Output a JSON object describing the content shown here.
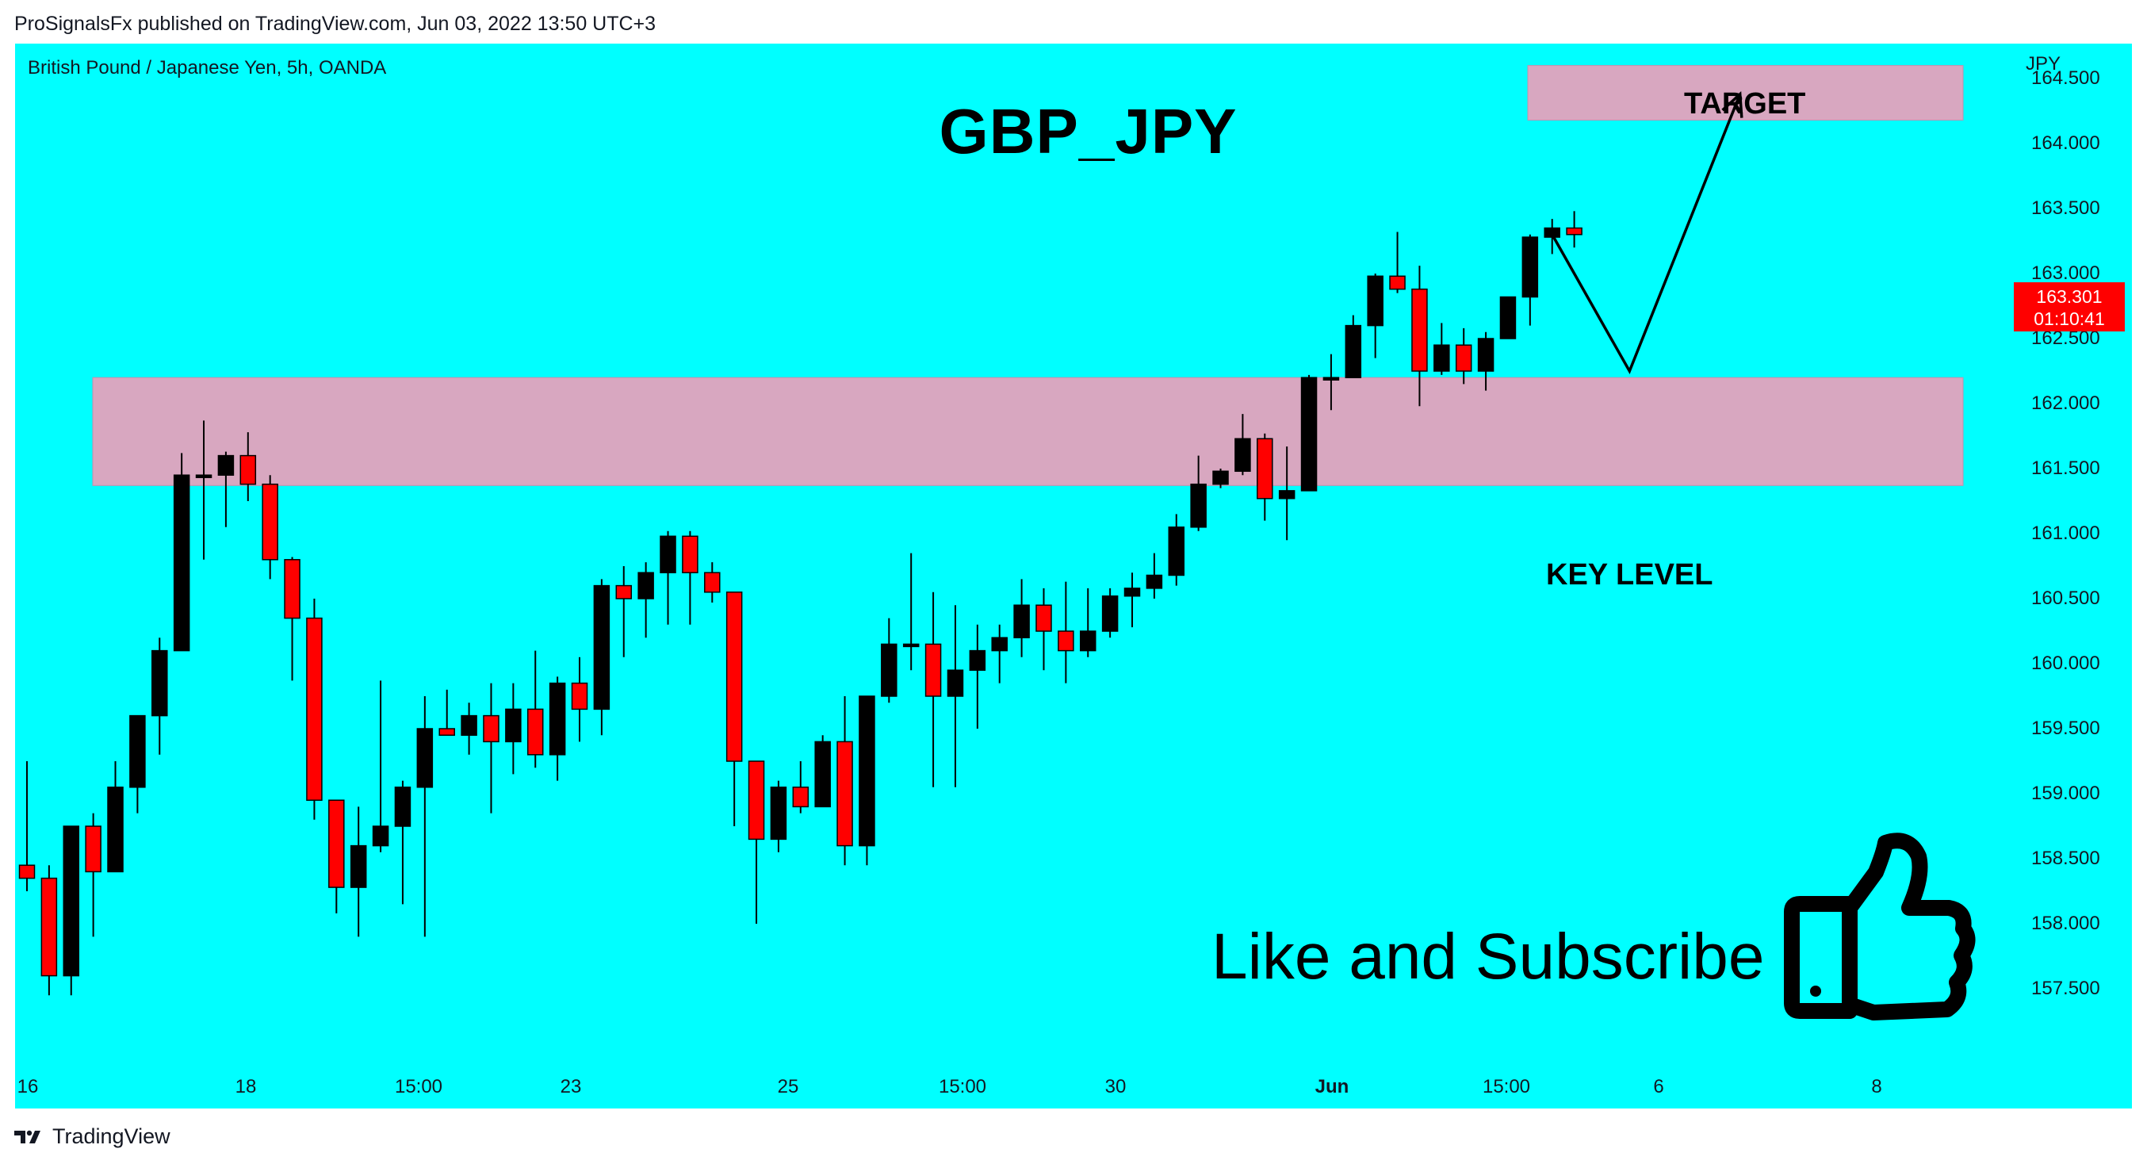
{
  "header": {
    "published_by": "ProSignalsFx published on TradingView.com, Jun 03, 2022 13:50 UTC+3"
  },
  "chart": {
    "symbol_line": "British Pound / Japanese Yen, 5h, OANDA",
    "currency": "JPY",
    "title": "GBP_JPY",
    "target_label": "TARGET",
    "key_level_label": "KEY LEVEL",
    "cta_text": "Like and Subscribe",
    "last_price": "163.301",
    "countdown": "01:10:41",
    "price_ticks": [
      "164.500",
      "164.000",
      "163.500",
      "163.000",
      "162.500",
      "162.000",
      "161.500",
      "161.000",
      "160.500",
      "160.000",
      "159.500",
      "159.000",
      "158.500",
      "158.000",
      "157.500"
    ],
    "time_ticks": [
      "16",
      "18",
      "15:00",
      "23",
      "25",
      "15:00",
      "30",
      "Jun",
      "15:00",
      "6",
      "8"
    ],
    "colors": {
      "background": "#00ffff",
      "up_candle": "#000000",
      "down_candle": "#ff0000",
      "zone": "#d8a7c0",
      "badge": "#ff0000"
    }
  },
  "footer": {
    "brand": "TradingView"
  },
  "chart_data": {
    "type": "candlestick",
    "title": "GBP_JPY",
    "ylabel": "JPY",
    "ylim": [
      157.25,
      164.85
    ],
    "x_ticks": [
      "16",
      "18",
      "15:00",
      "23",
      "25",
      "15:00",
      "30",
      "Jun",
      "15:00",
      "6",
      "8"
    ],
    "zones": [
      {
        "name": "TARGET",
        "low": 164.18,
        "high": 164.6
      },
      {
        "name": "KEY LEVEL",
        "low": 161.37,
        "high": 162.2
      }
    ],
    "projection": [
      {
        "bar": 69,
        "price": 163.3
      },
      {
        "bar": 72.5,
        "price": 162.25
      },
      {
        "bar": 77.5,
        "price": 164.38
      }
    ],
    "candles": [
      {
        "o": 158.45,
        "h": 159.25,
        "l": 158.25,
        "c": 158.35
      },
      {
        "o": 158.35,
        "h": 158.45,
        "l": 157.45,
        "c": 157.6
      },
      {
        "o": 157.6,
        "h": 158.75,
        "l": 157.45,
        "c": 158.75
      },
      {
        "o": 158.75,
        "h": 158.85,
        "l": 157.9,
        "c": 158.4
      },
      {
        "o": 158.4,
        "h": 159.25,
        "l": 158.4,
        "c": 159.05
      },
      {
        "o": 159.05,
        "h": 159.6,
        "l": 158.85,
        "c": 159.6
      },
      {
        "o": 159.6,
        "h": 160.2,
        "l": 159.3,
        "c": 160.1
      },
      {
        "o": 160.1,
        "h": 161.62,
        "l": 160.1,
        "c": 161.45
      },
      {
        "o": 161.45,
        "h": 161.87,
        "l": 160.8,
        "c": 161.45
      },
      {
        "o": 161.45,
        "h": 161.63,
        "l": 161.05,
        "c": 161.6
      },
      {
        "o": 161.6,
        "h": 161.78,
        "l": 161.25,
        "c": 161.38
      },
      {
        "o": 161.38,
        "h": 161.45,
        "l": 160.65,
        "c": 160.8
      },
      {
        "o": 160.8,
        "h": 160.82,
        "l": 159.87,
        "c": 160.35
      },
      {
        "o": 160.35,
        "h": 160.5,
        "l": 158.8,
        "c": 158.95
      },
      {
        "o": 158.95,
        "h": 158.95,
        "l": 158.08,
        "c": 158.28
      },
      {
        "o": 158.28,
        "h": 158.9,
        "l": 157.9,
        "c": 158.6
      },
      {
        "o": 158.6,
        "h": 159.87,
        "l": 158.55,
        "c": 158.75
      },
      {
        "o": 158.75,
        "h": 159.1,
        "l": 158.15,
        "c": 159.05
      },
      {
        "o": 159.05,
        "h": 159.75,
        "l": 157.9,
        "c": 159.5
      },
      {
        "o": 159.5,
        "h": 159.8,
        "l": 159.45,
        "c": 159.45
      },
      {
        "o": 159.45,
        "h": 159.7,
        "l": 159.3,
        "c": 159.6
      },
      {
        "o": 159.6,
        "h": 159.85,
        "l": 158.85,
        "c": 159.4
      },
      {
        "o": 159.4,
        "h": 159.85,
        "l": 159.15,
        "c": 159.65
      },
      {
        "o": 159.65,
        "h": 160.1,
        "l": 159.2,
        "c": 159.3
      },
      {
        "o": 159.3,
        "h": 159.9,
        "l": 159.1,
        "c": 159.85
      },
      {
        "o": 159.85,
        "h": 160.05,
        "l": 159.4,
        "c": 159.65
      },
      {
        "o": 159.65,
        "h": 160.65,
        "l": 159.45,
        "c": 160.6
      },
      {
        "o": 160.6,
        "h": 160.75,
        "l": 160.05,
        "c": 160.5
      },
      {
        "o": 160.5,
        "h": 160.78,
        "l": 160.2,
        "c": 160.7
      },
      {
        "o": 160.7,
        "h": 161.02,
        "l": 160.3,
        "c": 160.98
      },
      {
        "o": 160.98,
        "h": 161.02,
        "l": 160.3,
        "c": 160.7
      },
      {
        "o": 160.7,
        "h": 160.78,
        "l": 160.47,
        "c": 160.55
      },
      {
        "o": 160.55,
        "h": 160.55,
        "l": 158.75,
        "c": 159.25
      },
      {
        "o": 159.25,
        "h": 159.25,
        "l": 158.0,
        "c": 158.65
      },
      {
        "o": 158.65,
        "h": 159.1,
        "l": 158.55,
        "c": 159.05
      },
      {
        "o": 159.05,
        "h": 159.25,
        "l": 158.85,
        "c": 158.9
      },
      {
        "o": 158.9,
        "h": 159.45,
        "l": 158.9,
        "c": 159.4
      },
      {
        "o": 159.4,
        "h": 159.75,
        "l": 158.45,
        "c": 158.6
      },
      {
        "o": 158.6,
        "h": 159.75,
        "l": 158.45,
        "c": 159.75
      },
      {
        "o": 159.75,
        "h": 160.35,
        "l": 159.7,
        "c": 160.15
      },
      {
        "o": 160.15,
        "h": 160.85,
        "l": 159.95,
        "c": 160.15
      },
      {
        "o": 160.15,
        "h": 160.55,
        "l": 159.05,
        "c": 159.75
      },
      {
        "o": 159.75,
        "h": 160.45,
        "l": 159.05,
        "c": 159.95
      },
      {
        "o": 159.95,
        "h": 160.3,
        "l": 159.5,
        "c": 160.1
      },
      {
        "o": 160.1,
        "h": 160.3,
        "l": 159.85,
        "c": 160.2
      },
      {
        "o": 160.2,
        "h": 160.65,
        "l": 160.05,
        "c": 160.45
      },
      {
        "o": 160.45,
        "h": 160.58,
        "l": 159.95,
        "c": 160.25
      },
      {
        "o": 160.25,
        "h": 160.63,
        "l": 159.85,
        "c": 160.1
      },
      {
        "o": 160.1,
        "h": 160.58,
        "l": 160.05,
        "c": 160.25
      },
      {
        "o": 160.25,
        "h": 160.58,
        "l": 160.2,
        "c": 160.52
      },
      {
        "o": 160.52,
        "h": 160.7,
        "l": 160.28,
        "c": 160.58
      },
      {
        "o": 160.58,
        "h": 160.85,
        "l": 160.5,
        "c": 160.68
      },
      {
        "o": 160.68,
        "h": 161.15,
        "l": 160.6,
        "c": 161.05
      },
      {
        "o": 161.05,
        "h": 161.6,
        "l": 161.02,
        "c": 161.38
      },
      {
        "o": 161.38,
        "h": 161.5,
        "l": 161.35,
        "c": 161.48
      },
      {
        "o": 161.48,
        "h": 161.92,
        "l": 161.45,
        "c": 161.73
      },
      {
        "o": 161.73,
        "h": 161.77,
        "l": 161.1,
        "c": 161.27
      },
      {
        "o": 161.27,
        "h": 161.67,
        "l": 160.95,
        "c": 161.33
      },
      {
        "o": 161.33,
        "h": 162.22,
        "l": 161.33,
        "c": 162.2
      },
      {
        "o": 162.2,
        "h": 162.38,
        "l": 161.95,
        "c": 162.2
      },
      {
        "o": 162.2,
        "h": 162.68,
        "l": 162.2,
        "c": 162.6
      },
      {
        "o": 162.6,
        "h": 163.0,
        "l": 162.35,
        "c": 162.98
      },
      {
        "o": 162.98,
        "h": 163.32,
        "l": 162.85,
        "c": 162.88
      },
      {
        "o": 162.88,
        "h": 163.06,
        "l": 161.98,
        "c": 162.25
      },
      {
        "o": 162.25,
        "h": 162.62,
        "l": 162.22,
        "c": 162.45
      },
      {
        "o": 162.45,
        "h": 162.58,
        "l": 162.15,
        "c": 162.25
      },
      {
        "o": 162.25,
        "h": 162.55,
        "l": 162.1,
        "c": 162.5
      },
      {
        "o": 162.5,
        "h": 162.82,
        "l": 162.5,
        "c": 162.82
      },
      {
        "o": 162.82,
        "h": 163.3,
        "l": 162.6,
        "c": 163.28
      },
      {
        "o": 163.28,
        "h": 163.42,
        "l": 163.15,
        "c": 163.35
      },
      {
        "o": 163.35,
        "h": 163.48,
        "l": 163.2,
        "c": 163.3
      }
    ]
  }
}
